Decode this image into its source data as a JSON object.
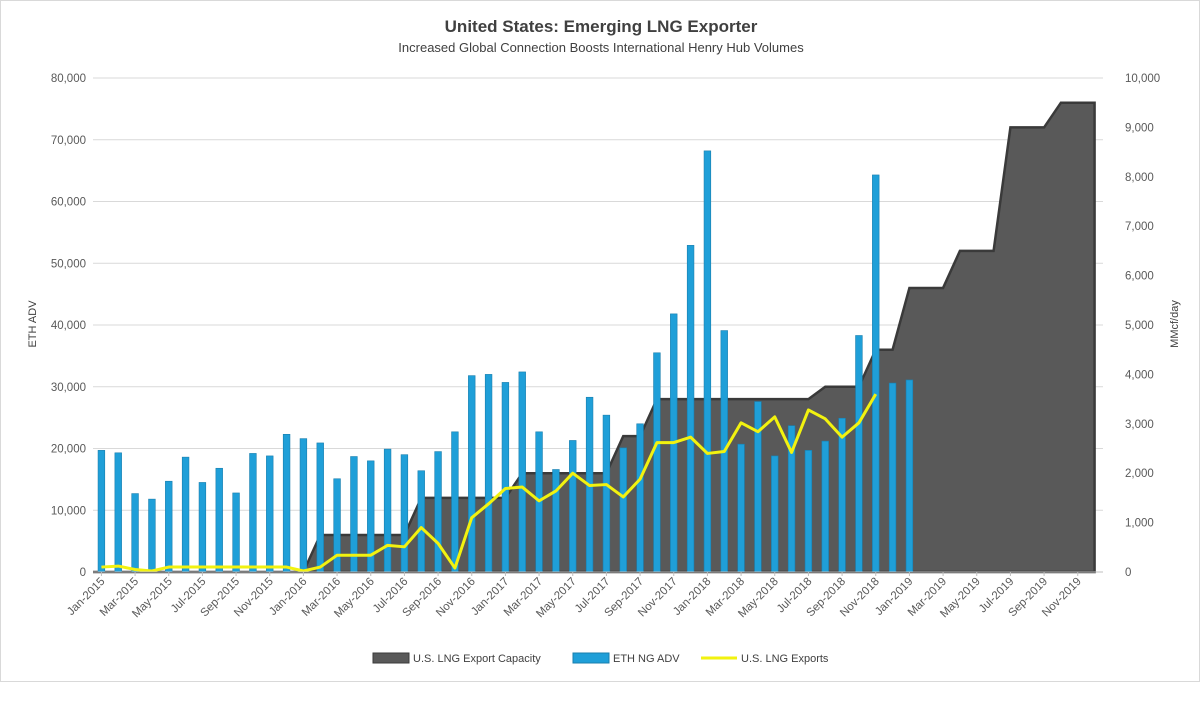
{
  "chart_data": {
    "type": "bar",
    "title": "United States: Emerging LNG Exporter",
    "subtitle": "Increased Global Connection Boosts International Henry Hub Volumes",
    "ylabel_left": "ETH ADV",
    "ylabel_right": "MMcf/day",
    "ylim_left": [
      0,
      80000
    ],
    "ylim_right": [
      0,
      10000
    ],
    "yticks_left": [
      "0",
      "10,000",
      "20,000",
      "30,000",
      "40,000",
      "50,000",
      "60,000",
      "70,000",
      "80,000"
    ],
    "yticks_right": [
      "0",
      "1,000",
      "2,000",
      "3,000",
      "4,000",
      "5,000",
      "6,000",
      "7,000",
      "8,000",
      "9,000",
      "10,000"
    ],
    "grid": true,
    "legend_position": "bottom",
    "x_tick_labels": [
      "Jan-2015",
      "Mar-2015",
      "May-2015",
      "Jul-2015",
      "Sep-2015",
      "Nov-2015",
      "Jan-2016",
      "Mar-2016",
      "May-2016",
      "Jul-2016",
      "Sep-2016",
      "Nov-2016",
      "Jan-2017",
      "Mar-2017",
      "May-2017",
      "Jul-2017",
      "Sep-2017",
      "Nov-2017",
      "Jan-2018",
      "Mar-2018",
      "May-2018",
      "Jul-2018",
      "Sep-2018",
      "Nov-2018",
      "Jan-2019",
      "Mar-2019",
      "May-2019",
      "Jul-2019",
      "Sep-2019",
      "Nov-2019"
    ],
    "series": [
      {
        "name": "U.S. LNG Export Capacity",
        "type": "area",
        "axis": "right",
        "color": "#595959",
        "start": "Jan-2015",
        "values": [
          0,
          0,
          0,
          0,
          0,
          0,
          0,
          0,
          0,
          0,
          0,
          0,
          0,
          750,
          750,
          750,
          750,
          750,
          750,
          1500,
          1500,
          1500,
          1500,
          1500,
          1500,
          2000,
          2000,
          2000,
          2000,
          2000,
          2000,
          2750,
          2750,
          3500,
          3500,
          3500,
          3500,
          3500,
          3500,
          3500,
          3500,
          3500,
          3500,
          3750,
          3750,
          3750,
          4500,
          4500,
          5750,
          5750,
          5750,
          6500,
          6500,
          6500,
          9000,
          9000,
          9000,
          9500,
          9500,
          9500
        ]
      },
      {
        "name": "ETH NG ADV",
        "type": "bar",
        "axis": "left",
        "color": "#1f9fd8",
        "start": "Jan-2015",
        "values": [
          19700,
          19300,
          12700,
          11800,
          14700,
          18600,
          14500,
          16800,
          12800,
          19200,
          18800,
          22300,
          21600,
          20900,
          15100,
          18700,
          18000,
          19900,
          19000,
          16400,
          19500,
          22700,
          31800,
          32000,
          30700,
          32400,
          22700,
          16600,
          21300,
          28300,
          25400,
          20100,
          24000,
          35500,
          41800,
          52900,
          68200,
          39100,
          20700,
          27600,
          18800,
          23700,
          19700,
          21200,
          24900,
          38300,
          64300,
          30600,
          31100
        ]
      },
      {
        "name": "U.S. LNG Exports",
        "type": "line",
        "axis": "right",
        "color": "#f2f20f",
        "start": "Jan-2015",
        "values": [
          100,
          120,
          50,
          20,
          100,
          100,
          100,
          100,
          100,
          100,
          100,
          100,
          20,
          100,
          340,
          340,
          340,
          540,
          510,
          900,
          580,
          80,
          1100,
          1380,
          1690,
          1720,
          1440,
          1640,
          2000,
          1750,
          1770,
          1520,
          1880,
          2620,
          2620,
          2730,
          2400,
          2440,
          3020,
          2840,
          3140,
          2420,
          3280,
          3100,
          2730,
          3020,
          3600
        ]
      }
    ]
  }
}
